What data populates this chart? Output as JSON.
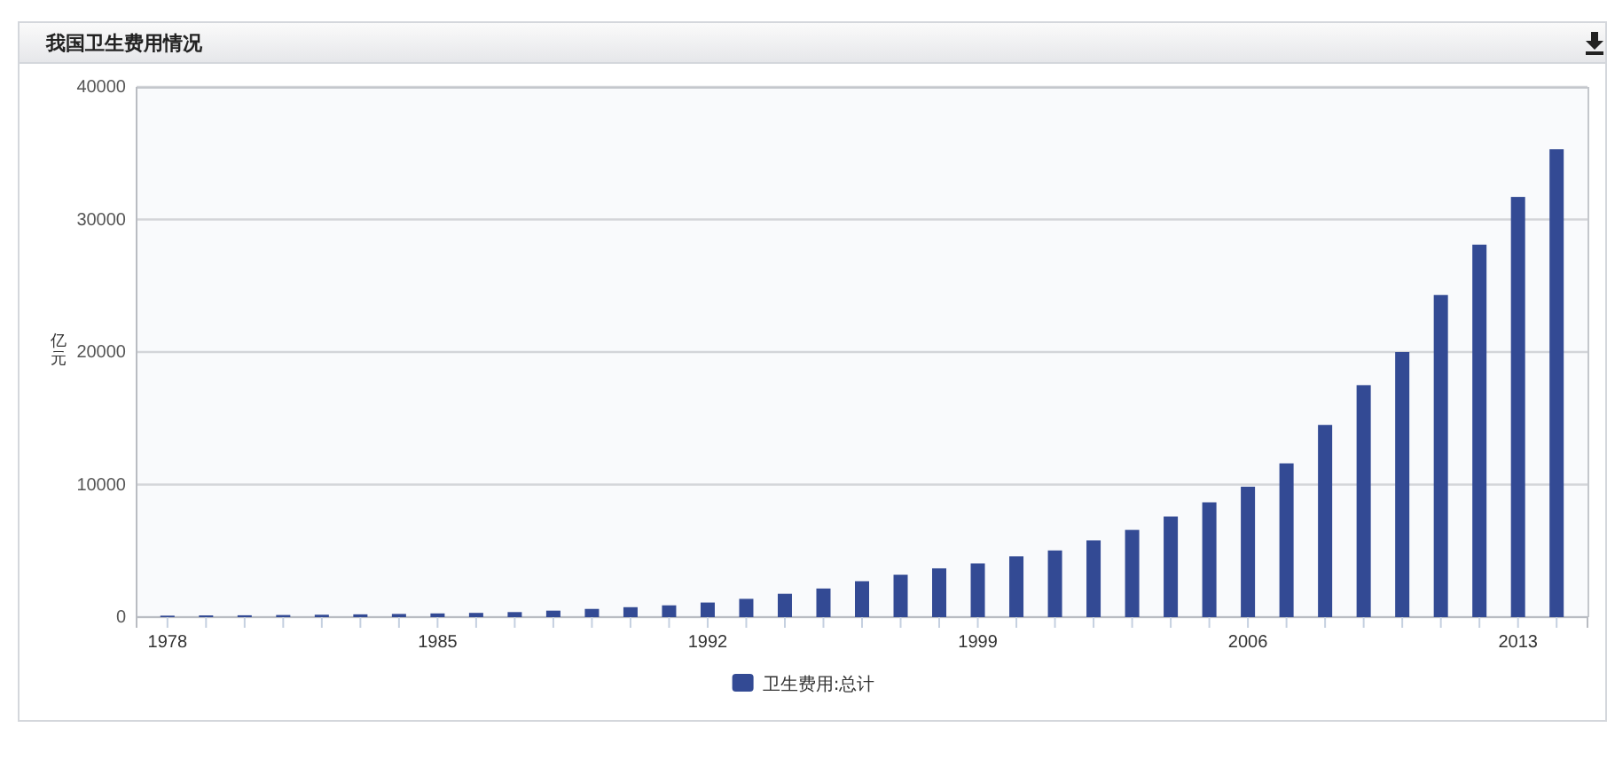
{
  "chart_data": {
    "type": "bar",
    "title": "我国卫生费用情况",
    "ylabel": "亿元",
    "categories": [
      "1978",
      null,
      null,
      null,
      null,
      null,
      null,
      "1985",
      null,
      null,
      null,
      null,
      null,
      null,
      "1992",
      null,
      null,
      null,
      null,
      null,
      null,
      "1999",
      null,
      null,
      null,
      null,
      null,
      null,
      "2006",
      null,
      null,
      null,
      null,
      null,
      null,
      "2013",
      null
    ],
    "series": [
      {
        "name": "卫生费用:总计",
        "color": "#334a94",
        "values": [
          110,
          130,
          140,
          160,
          180,
          210,
          240,
          280,
          320,
          380,
          490,
          620,
          750,
          890,
          1100,
          1380,
          1760,
          2160,
          2710,
          3200,
          3680,
          4050,
          4590,
          5030,
          5790,
          6580,
          7590,
          8660,
          9840,
          11600,
          14500,
          17500,
          20000,
          24300,
          28100,
          31700,
          35300
        ]
      }
    ],
    "ylim": [
      0,
      40000
    ],
    "yticks": [
      0,
      10000,
      20000,
      30000,
      40000
    ],
    "grid": "y",
    "legend": "bottom"
  }
}
